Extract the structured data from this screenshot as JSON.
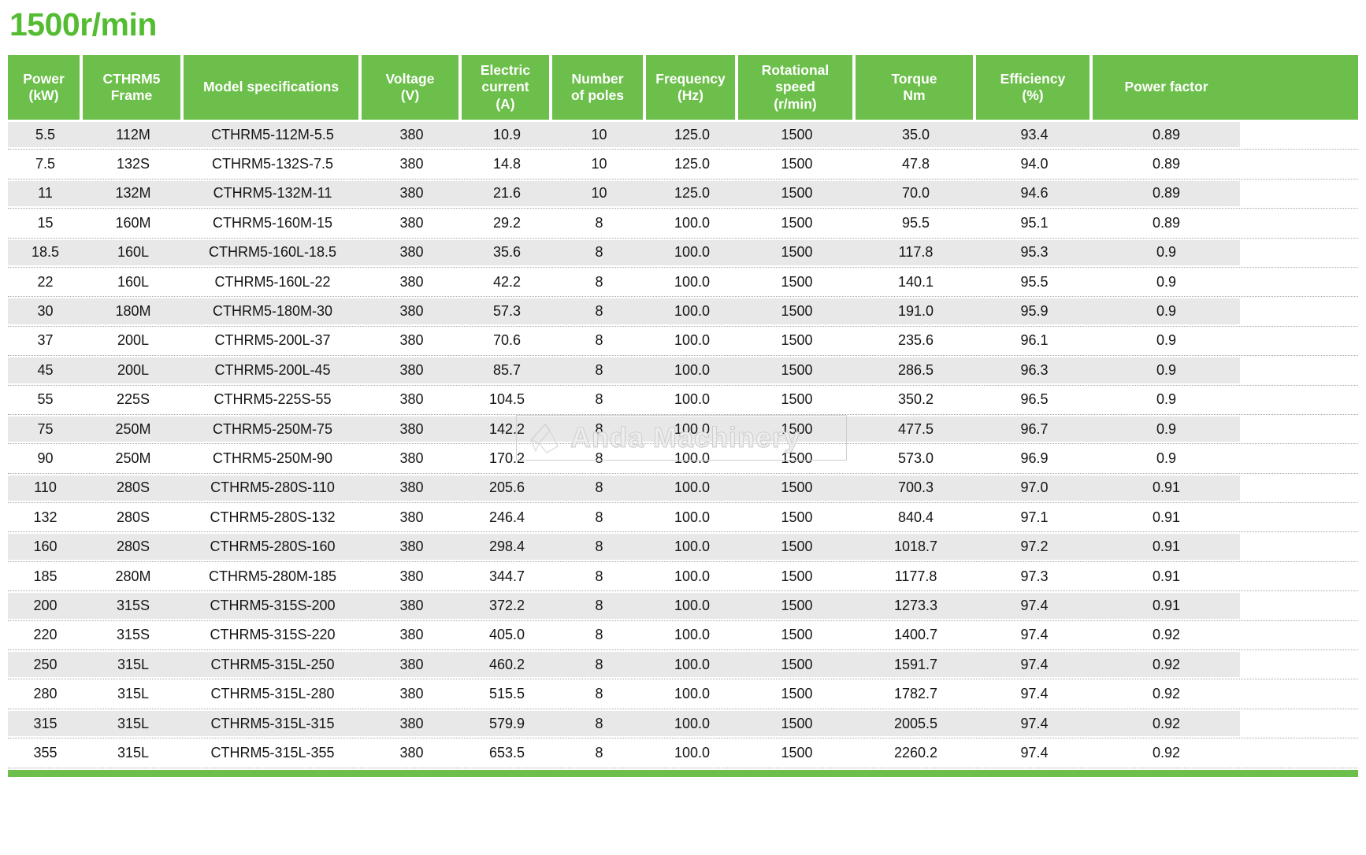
{
  "title": "1500r/min",
  "watermark": {
    "text": "Anda Machinery"
  },
  "colors": {
    "title_green": "#53BC31",
    "header_green": "#6CBF4A",
    "row_gray": "#E8E8E8",
    "dotted_line": "#A6A6A6",
    "text": "#151515",
    "watermark_gray": "#CFCFCF"
  },
  "table": {
    "columns": [
      "Power\n(kW)",
      "CTHRM5\nFrame",
      "Model specifications",
      "Voltage\n(V)",
      "Electric\ncurrent\n(A)",
      "Number\nof poles",
      "Frequency\n(Hz)",
      "Rotational\nspeed\n(r/min)",
      "Torque\nNm",
      "Efficiency\n(%)",
      "Power factor"
    ],
    "rows": [
      [
        "5.5",
        "112M",
        "CTHRM5-112M-5.5",
        "380",
        "10.9",
        "10",
        "125.0",
        "1500",
        "35.0",
        "93.4",
        "0.89"
      ],
      [
        "7.5",
        "132S",
        "CTHRM5-132S-7.5",
        "380",
        "14.8",
        "10",
        "125.0",
        "1500",
        "47.8",
        "94.0",
        "0.89"
      ],
      [
        "11",
        "132M",
        "CTHRM5-132M-11",
        "380",
        "21.6",
        "10",
        "125.0",
        "1500",
        "70.0",
        "94.6",
        "0.89"
      ],
      [
        "15",
        "160M",
        "CTHRM5-160M-15",
        "380",
        "29.2",
        "8",
        "100.0",
        "1500",
        "95.5",
        "95.1",
        "0.89"
      ],
      [
        "18.5",
        "160L",
        "CTHRM5-160L-18.5",
        "380",
        "35.6",
        "8",
        "100.0",
        "1500",
        "117.8",
        "95.3",
        "0.9"
      ],
      [
        "22",
        "160L",
        "CTHRM5-160L-22",
        "380",
        "42.2",
        "8",
        "100.0",
        "1500",
        "140.1",
        "95.5",
        "0.9"
      ],
      [
        "30",
        "180M",
        "CTHRM5-180M-30",
        "380",
        "57.3",
        "8",
        "100.0",
        "1500",
        "191.0",
        "95.9",
        "0.9"
      ],
      [
        "37",
        "200L",
        "CTHRM5-200L-37",
        "380",
        "70.6",
        "8",
        "100.0",
        "1500",
        "235.6",
        "96.1",
        "0.9"
      ],
      [
        "45",
        "200L",
        "CTHRM5-200L-45",
        "380",
        "85.7",
        "8",
        "100.0",
        "1500",
        "286.5",
        "96.3",
        "0.9"
      ],
      [
        "55",
        "225S",
        "CTHRM5-225S-55",
        "380",
        "104.5",
        "8",
        "100.0",
        "1500",
        "350.2",
        "96.5",
        "0.9"
      ],
      [
        "75",
        "250M",
        "CTHRM5-250M-75",
        "380",
        "142.2",
        "8",
        "100.0",
        "1500",
        "477.5",
        "96.7",
        "0.9"
      ],
      [
        "90",
        "250M",
        "CTHRM5-250M-90",
        "380",
        "170.2",
        "8",
        "100.0",
        "1500",
        "573.0",
        "96.9",
        "0.9"
      ],
      [
        "110",
        "280S",
        "CTHRM5-280S-110",
        "380",
        "205.6",
        "8",
        "100.0",
        "1500",
        "700.3",
        "97.0",
        "0.91"
      ],
      [
        "132",
        "280S",
        "CTHRM5-280S-132",
        "380",
        "246.4",
        "8",
        "100.0",
        "1500",
        "840.4",
        "97.1",
        "0.91"
      ],
      [
        "160",
        "280S",
        "CTHRM5-280S-160",
        "380",
        "298.4",
        "8",
        "100.0",
        "1500",
        "1018.7",
        "97.2",
        "0.91"
      ],
      [
        "185",
        "280M",
        "CTHRM5-280M-185",
        "380",
        "344.7",
        "8",
        "100.0",
        "1500",
        "1177.8",
        "97.3",
        "0.91"
      ],
      [
        "200",
        "315S",
        "CTHRM5-315S-200",
        "380",
        "372.2",
        "8",
        "100.0",
        "1500",
        "1273.3",
        "97.4",
        "0.91"
      ],
      [
        "220",
        "315S",
        "CTHRM5-315S-220",
        "380",
        "405.0",
        "8",
        "100.0",
        "1500",
        "1400.7",
        "97.4",
        "0.92"
      ],
      [
        "250",
        "315L",
        "CTHRM5-315L-250",
        "380",
        "460.2",
        "8",
        "100.0",
        "1500",
        "1591.7",
        "97.4",
        "0.92"
      ],
      [
        "280",
        "315L",
        "CTHRM5-315L-280",
        "380",
        "515.5",
        "8",
        "100.0",
        "1500",
        "1782.7",
        "97.4",
        "0.92"
      ],
      [
        "315",
        "315L",
        "CTHRM5-315L-315",
        "380",
        "579.9",
        "8",
        "100.0",
        "1500",
        "2005.5",
        "97.4",
        "0.92"
      ],
      [
        "355",
        "315L",
        "CTHRM5-315L-355",
        "380",
        "653.5",
        "8",
        "100.0",
        "1500",
        "2260.2",
        "97.4",
        "0.92"
      ]
    ]
  }
}
